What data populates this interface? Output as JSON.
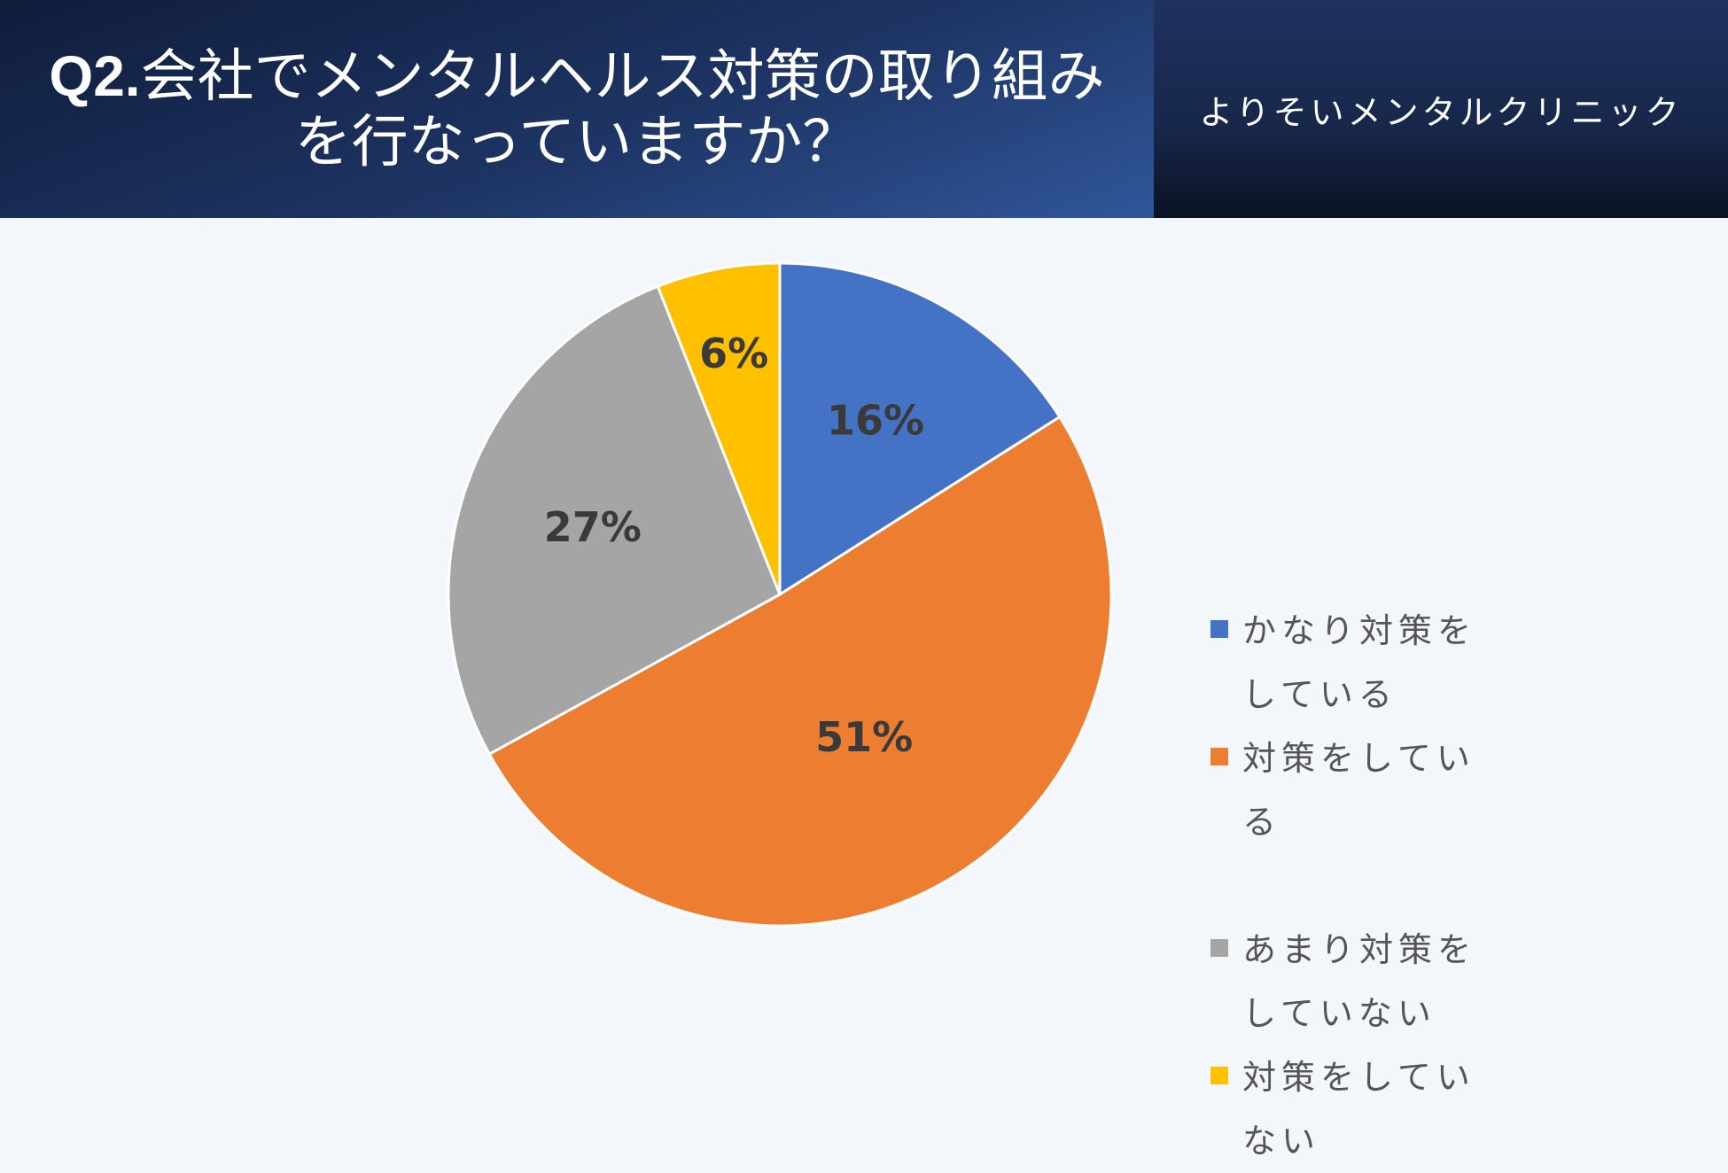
{
  "header": {
    "title_prefix": "Q2.",
    "title_text": "会社でメンタルヘルス対策の取り組みを行なっていますか？",
    "brand": "よりそいメンタルクリニック"
  },
  "chart_data": {
    "type": "pie",
    "title": "Q2.会社でメンタルヘルス対策の取り組みを行なっていますか？",
    "legend_position": "right",
    "slices": [
      {
        "label": "かなり対策をしている",
        "value": 16,
        "display": "16%",
        "color": "#4472c4"
      },
      {
        "label": "対策をしている",
        "value": 51,
        "display": "51%",
        "color": "#ed7d31"
      },
      {
        "label": "あまり対策をしていない",
        "value": 27,
        "display": "27%",
        "color": "#a5a5a5"
      },
      {
        "label": "対策をしていない",
        "value": 6,
        "display": "6%",
        "color": "#ffc000"
      }
    ]
  }
}
